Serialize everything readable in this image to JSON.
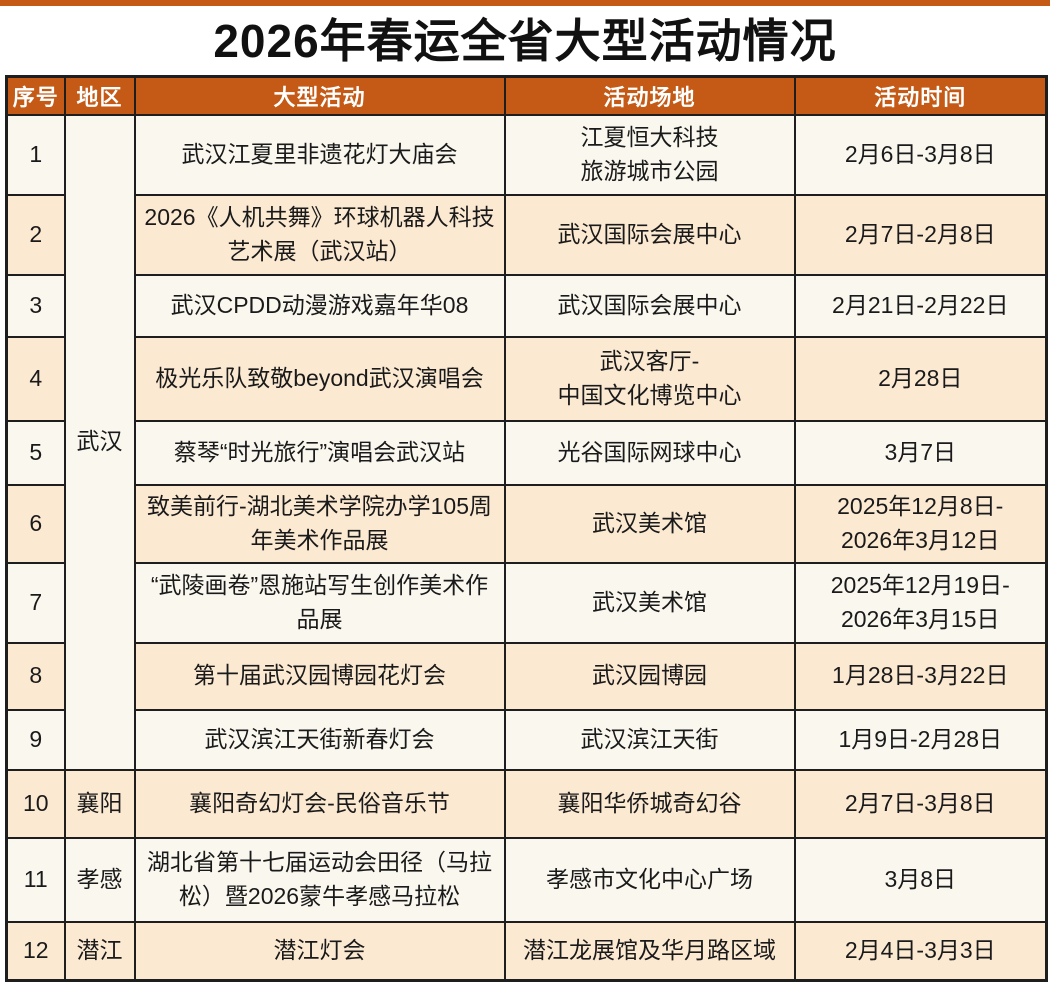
{
  "title": "2026年春运全省大型活动情况",
  "columns": [
    "序号",
    "地区",
    "大型活动",
    "活动场地",
    "活动时间"
  ],
  "colors": {
    "accent": "#C45A15",
    "header_text": "#FFFFFF",
    "row_cream": "#FBE9D2",
    "row_offwhite": "#FAF7EF",
    "border": "#1E1E1E",
    "text": "#1A1A1A",
    "title_text": "#111111",
    "page_bg": "#FFFFFF"
  },
  "rows": [
    {
      "no": "1",
      "region": {
        "label": "武汉",
        "rowspan": 9
      },
      "activity": "武汉江夏里非遗花灯大庙会",
      "venue": "江夏恒大科技\n旅游城市公园",
      "time": "2月6日-3月8日"
    },
    {
      "no": "2",
      "activity": "2026《人机共舞》环球机器人科技艺术展（武汉站）",
      "venue": "武汉国际会展中心",
      "time": "2月7日-2月8日"
    },
    {
      "no": "3",
      "activity": "武汉CPDD动漫游戏嘉年华08",
      "venue": "武汉国际会展中心",
      "time": "2月21日-2月22日"
    },
    {
      "no": "4",
      "activity": "极光乐队致敬beyond武汉演唱会",
      "venue": "武汉客厅-\n中国文化博览中心",
      "time": "2月28日"
    },
    {
      "no": "5",
      "activity": "蔡琴“时光旅行”演唱会武汉站",
      "venue": "光谷国际网球中心",
      "time": "3月7日"
    },
    {
      "no": "6",
      "activity": "致美前行-湖北美术学院办学105周年美术作品展",
      "venue": "武汉美术馆",
      "time": "2025年12月8日-\n2026年3月12日"
    },
    {
      "no": "7",
      "activity": "“武陵画卷”恩施站写生创作美术作品展",
      "venue": "武汉美术馆",
      "time": "2025年12月19日-\n2026年3月15日"
    },
    {
      "no": "8",
      "activity": "第十届武汉园博园花灯会",
      "venue": "武汉园博园",
      "time": "1月28日-3月22日"
    },
    {
      "no": "9",
      "activity": "武汉滨江天街新春灯会",
      "venue": "武汉滨江天街",
      "time": "1月9日-2月28日"
    },
    {
      "no": "10",
      "region": {
        "label": "襄阳",
        "rowspan": 1
      },
      "activity": "襄阳奇幻灯会-民俗音乐节",
      "venue": "襄阳华侨城奇幻谷",
      "time": "2月7日-3月8日"
    },
    {
      "no": "11",
      "region": {
        "label": "孝感",
        "rowspan": 1
      },
      "activity": "湖北省第十七届运动会田径（马拉松）暨2026蒙牛孝感马拉松",
      "venue": "孝感市文化中心广场",
      "time": "3月8日"
    },
    {
      "no": "12",
      "region": {
        "label": "潜江",
        "rowspan": 1
      },
      "activity": "潜江灯会",
      "venue": "潜江龙展馆及华月路区域",
      "time": "2月4日-3月3日"
    }
  ]
}
